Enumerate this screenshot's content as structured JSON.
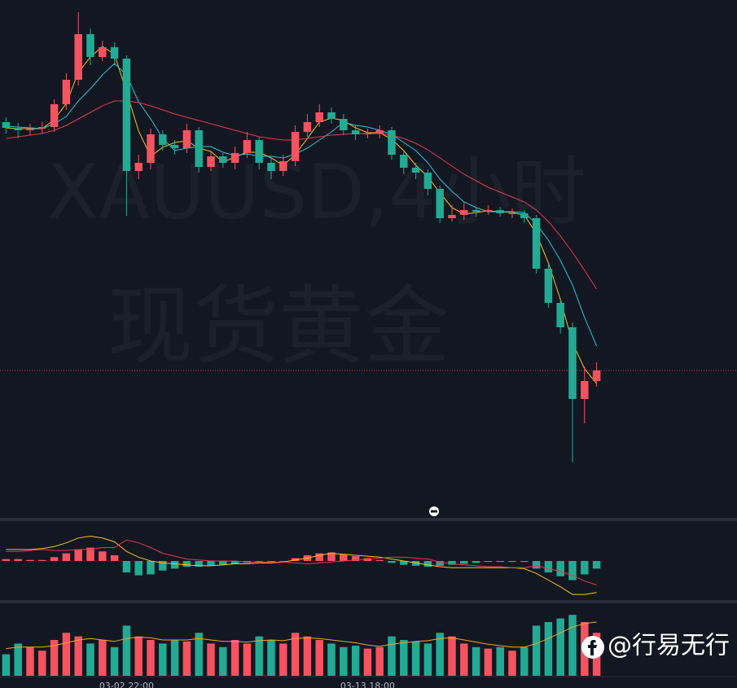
{
  "chart_data": {
    "type": "candlestick",
    "watermark": "XAUUSD,4小时",
    "watermark_sub": "现货黄金",
    "logo": "@行易无行",
    "up_color": "#f7525f",
    "down_color": "#22ab94",
    "ylim": [
      0,
      640
    ],
    "categories": [
      null,
      null,
      null,
      null,
      null,
      null,
      null,
      null,
      null,
      null,
      "03-02 22:00",
      null,
      null,
      null,
      null,
      null,
      null,
      null,
      null,
      null,
      null,
      null,
      null,
      null,
      null,
      null,
      null,
      null,
      null,
      null,
      "03-13 18:00",
      null,
      null,
      null,
      null,
      null,
      null,
      null,
      null,
      null,
      null,
      null,
      null,
      null,
      null,
      null,
      null,
      null,
      null,
      null
    ],
    "open": [
      490,
      483,
      480,
      482,
      484,
      512,
      542,
      598,
      570,
      582,
      568,
      430,
      440,
      475,
      462,
      458,
      480,
      435,
      448,
      440,
      452,
      468,
      440,
      430,
      442,
      478,
      490,
      502,
      494,
      480,
      475,
      476,
      480,
      450,
      434,
      428,
      408,
      372,
      376,
      382,
      380,
      382,
      378,
      378,
      372,
      310,
      268,
      238,
      150,
      172
    ],
    "high": [
      496,
      489,
      488,
      490,
      518,
      550,
      625,
      605,
      590,
      588,
      572,
      450,
      482,
      480,
      468,
      488,
      484,
      455,
      452,
      460,
      478,
      472,
      446,
      450,
      486,
      500,
      512,
      508,
      500,
      486,
      482,
      486,
      484,
      456,
      440,
      432,
      412,
      388,
      392,
      386,
      388,
      386,
      384,
      382,
      376,
      316,
      272,
      244,
      190,
      195
    ],
    "low": [
      476,
      470,
      474,
      476,
      478,
      505,
      535,
      560,
      565,
      560,
      375,
      420,
      432,
      455,
      450,
      452,
      428,
      430,
      434,
      432,
      446,
      432,
      420,
      424,
      436,
      472,
      484,
      488,
      474,
      468,
      470,
      470,
      444,
      426,
      420,
      400,
      366,
      368,
      370,
      374,
      376,
      374,
      372,
      366,
      304,
      262,
      230,
      72,
      120,
      165
    ],
    "close": [
      483,
      480,
      482,
      484,
      512,
      542,
      598,
      570,
      582,
      568,
      430,
      440,
      475,
      462,
      458,
      480,
      435,
      448,
      440,
      452,
      468,
      440,
      430,
      442,
      478,
      490,
      502,
      494,
      480,
      475,
      476,
      480,
      450,
      434,
      428,
      408,
      372,
      376,
      382,
      380,
      382,
      378,
      378,
      372,
      310,
      268,
      238,
      150,
      172,
      185
    ],
    "ma": [
      {
        "color": "#f5c518",
        "values": [
          483,
          482,
          482,
          482,
          493,
          513,
          551,
          570,
          583,
          573,
          527,
          479,
          448,
          459,
          465,
          467,
          458,
          454,
          441,
          447,
          453,
          453,
          446,
          437,
          450,
          470,
          490,
          495,
          492,
          483,
          477,
          477,
          469,
          455,
          437,
          423,
          403,
          385,
          377,
          379,
          381,
          380,
          379,
          376,
          353,
          317,
          272,
          219,
          187,
          169
        ]
      },
      {
        "color": "#26c6da",
        "values": [
          485,
          484,
          483,
          482,
          488,
          497,
          516,
          531,
          548,
          562,
          548,
          515,
          494,
          470,
          455,
          458,
          460,
          460,
          453,
          449,
          451,
          448,
          448,
          446,
          451,
          458,
          468,
          478,
          490,
          486,
          484,
          480,
          475,
          465,
          455,
          440,
          420,
          405,
          392,
          385,
          380,
          380,
          380,
          379,
          365,
          345,
          320,
          290,
          250,
          215
        ]
      },
      {
        "color": "#e53950",
        "values": [
          470,
          472,
          474,
          476,
          480,
          486,
          494,
          502,
          510,
          516,
          516,
          514,
          510,
          505,
          500,
          496,
          492,
          488,
          484,
          480,
          476,
          472,
          470,
          468,
          468,
          470,
          472,
          474,
          475,
          476,
          476,
          476,
          474,
          470,
          464,
          456,
          446,
          436,
          426,
          418,
          410,
          404,
          398,
          392,
          382,
          368,
          350,
          330,
          308,
          285
        ]
      }
    ],
    "macd": {
      "ylim": [
        -40,
        40
      ],
      "histogram": [
        2,
        2,
        1,
        1,
        4,
        8,
        12,
        14,
        10,
        6,
        -12,
        -15,
        -14,
        -10,
        -8,
        -6,
        -6,
        -5,
        -4,
        -3,
        -2,
        -1,
        -1,
        0,
        3,
        6,
        8,
        9,
        7,
        5,
        3,
        1,
        -2,
        -4,
        -5,
        -6,
        -5,
        -4,
        -3,
        -2,
        -1,
        -1,
        0,
        -1,
        -8,
        -12,
        -16,
        -20,
        -14,
        -8
      ],
      "dif": {
        "color": "#f5c518",
        "values": [
          12,
          12,
          12,
          13,
          15,
          19,
          24,
          26,
          24,
          20,
          10,
          4,
          0,
          -2,
          -3,
          -4,
          -5,
          -5,
          -4,
          -3,
          -3,
          -2,
          -2,
          -1,
          1,
          3,
          6,
          8,
          7,
          6,
          5,
          4,
          2,
          0,
          -2,
          -4,
          -6,
          -7,
          -7,
          -7,
          -7,
          -7,
          -7,
          -8,
          -13,
          -20,
          -27,
          -35,
          -35,
          -33
        ]
      },
      "dea": {
        "color": "#e53950",
        "values": [
          10,
          10,
          11,
          12,
          11,
          11,
          12,
          12,
          14,
          14,
          22,
          19,
          14,
          8,
          5,
          2,
          1,
          0,
          0,
          0,
          -1,
          -1,
          -1,
          -1,
          -2,
          -3,
          -2,
          -1,
          0,
          1,
          2,
          3,
          4,
          4,
          3,
          2,
          -1,
          -3,
          -4,
          -5,
          -6,
          -6,
          -7,
          -7,
          -5,
          -8,
          -11,
          -15,
          -21,
          -25
        ]
      }
    },
    "volume": {
      "ylim": [
        0,
        100
      ],
      "values": [
        30,
        45,
        40,
        35,
        50,
        60,
        55,
        45,
        50,
        40,
        70,
        55,
        50,
        45,
        50,
        48,
        60,
        45,
        40,
        50,
        45,
        55,
        50,
        45,
        60,
        55,
        50,
        45,
        40,
        42,
        38,
        40,
        55,
        50,
        48,
        45,
        60,
        55,
        45,
        40,
        38,
        40,
        35,
        40,
        70,
        75,
        80,
        85,
        75,
        60
      ],
      "ma": {
        "color": "#f5a623",
        "values": [
          38,
          40,
          40,
          40,
          42,
          46,
          50,
          52,
          50,
          48,
          52,
          54,
          53,
          50,
          50,
          50,
          52,
          50,
          48,
          48,
          47,
          49,
          50,
          49,
          52,
          53,
          52,
          50,
          48,
          46,
          43,
          41,
          44,
          46,
          48,
          49,
          52,
          53,
          50,
          47,
          44,
          42,
          40,
          40,
          45,
          52,
          60,
          68,
          73,
          75
        ]
      }
    }
  }
}
